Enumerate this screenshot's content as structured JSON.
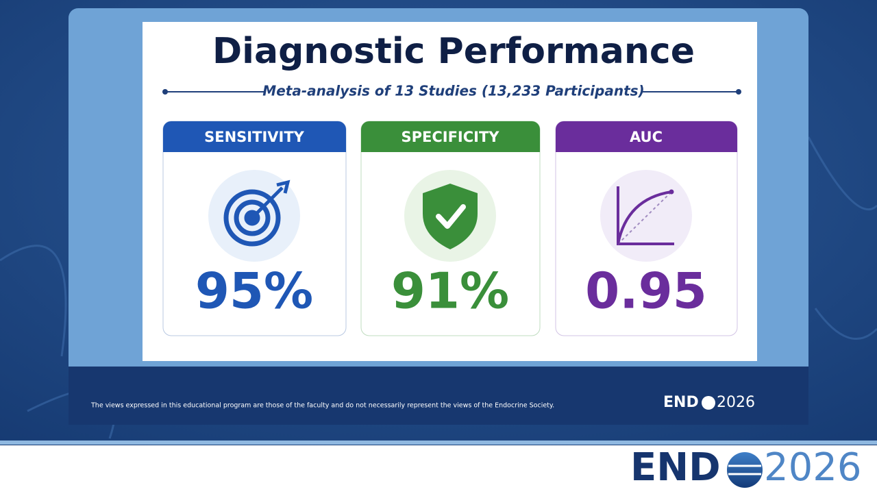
{
  "slide": {
    "title": "Diagnostic Performance",
    "subtitle": "Meta-analysis of 13 Studies (13,233 Participants)",
    "cards": [
      {
        "label": "SENSITIVITY",
        "value": "95%"
      },
      {
        "label": "SPECIFICITY",
        "value": "91%"
      },
      {
        "label": "AUC",
        "value": "0.95"
      }
    ]
  },
  "footer": {
    "disclaimer": "The views expressed in this educational program are those of the faculty and do not necessarily represent the views of the Endocrine Society.",
    "logo": {
      "left": "END",
      "right": "2026"
    }
  }
}
